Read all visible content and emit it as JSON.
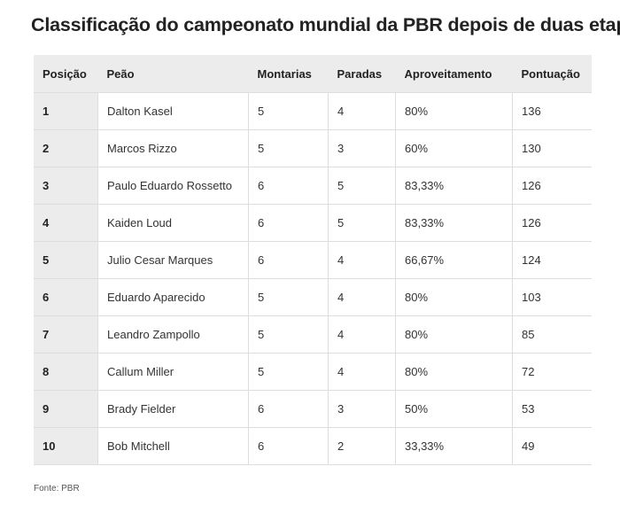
{
  "title": "Classificação do campeonato mundial da PBR depois de duas etapas",
  "table": {
    "headers": [
      "Posição",
      "Peão",
      "Montarias",
      "Paradas",
      "Aproveitamento",
      "Pontuação"
    ],
    "rows": [
      [
        "1",
        "Dalton Kasel",
        "5",
        "4",
        "80%",
        "136"
      ],
      [
        "2",
        "Marcos Rizzo",
        "5",
        "3",
        "60%",
        "130"
      ],
      [
        "3",
        "Paulo Eduardo Rossetto",
        "6",
        "5",
        "83,33%",
        "126"
      ],
      [
        "4",
        "Kaiden Loud",
        "6",
        "5",
        "83,33%",
        "126"
      ],
      [
        "5",
        "Julio Cesar Marques",
        "6",
        "4",
        "66,67%",
        "124"
      ],
      [
        "6",
        "Eduardo Aparecido",
        "5",
        "4",
        "80%",
        "103"
      ],
      [
        "7",
        "Leandro Zampollo",
        "5",
        "4",
        "80%",
        "85"
      ],
      [
        "8",
        "Callum Miller",
        "5",
        "4",
        "80%",
        "72"
      ],
      [
        "9",
        "Brady Fielder",
        "6",
        "3",
        "50%",
        "53"
      ],
      [
        "10",
        "Bob Mitchell",
        "6",
        "2",
        "33,33%",
        "49"
      ]
    ]
  },
  "source": "Fonte: PBR"
}
